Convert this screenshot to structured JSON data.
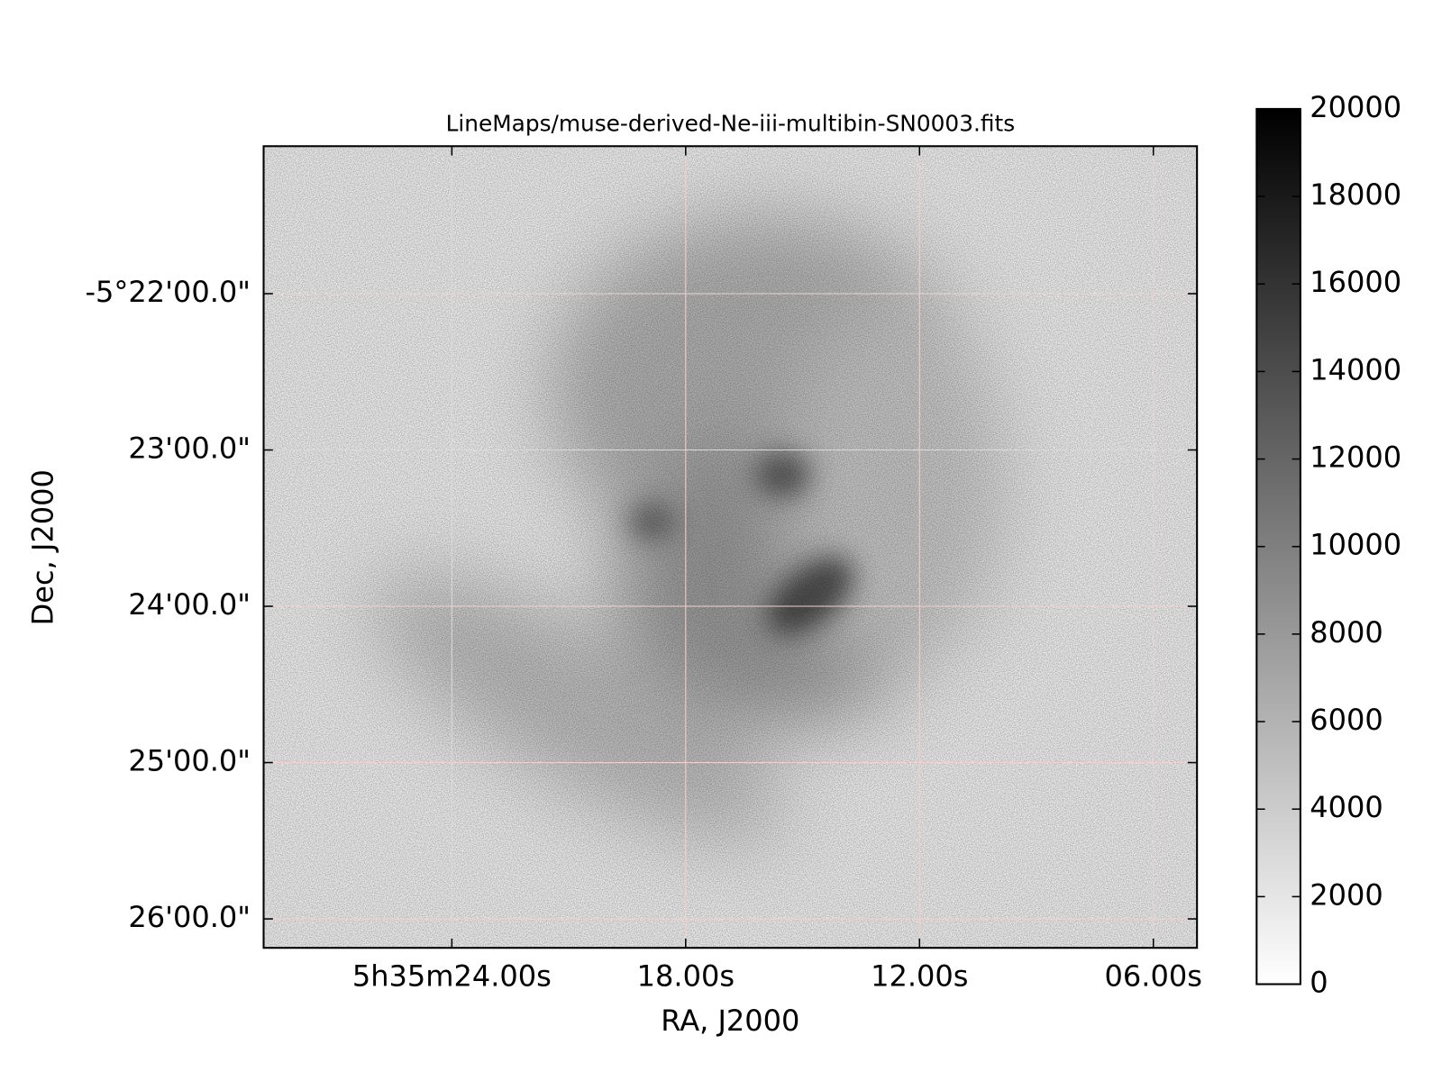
{
  "chart_data": {
    "type": "image",
    "title": "LineMaps/muse-derived-Ne-iii-multibin-SN0003.fits",
    "x_label": "RA, J2000",
    "y_label": "Dec, J2000",
    "colormap": "gray_r",
    "grid": true,
    "xlim": [
      28.83,
      4.88
    ],
    "xticks": [
      {
        "value": 24,
        "label": "5h35m24.00s"
      },
      {
        "value": 18,
        "label": "18.00s"
      },
      {
        "value": 12,
        "label": "12.00s"
      },
      {
        "value": 6,
        "label": "06.00s"
      }
    ],
    "ylim": [
      -5.43642,
      -5.35094
    ],
    "yticks": [
      {
        "value": -5.366667,
        "label": "-5°22'00.0\""
      },
      {
        "value": -5.383333,
        "label": "23'00.0\""
      },
      {
        "value": -5.4,
        "label": "24'00.0\""
      },
      {
        "value": -5.416667,
        "label": "25'00.0\""
      },
      {
        "value": -5.433333,
        "label": "26'00.0\""
      }
    ],
    "colorbar": {
      "lim": [
        0,
        20000
      ],
      "ticks": [
        0,
        2000,
        4000,
        6000,
        8000,
        10000,
        12000,
        14000,
        16000,
        18000,
        20000
      ]
    }
  }
}
